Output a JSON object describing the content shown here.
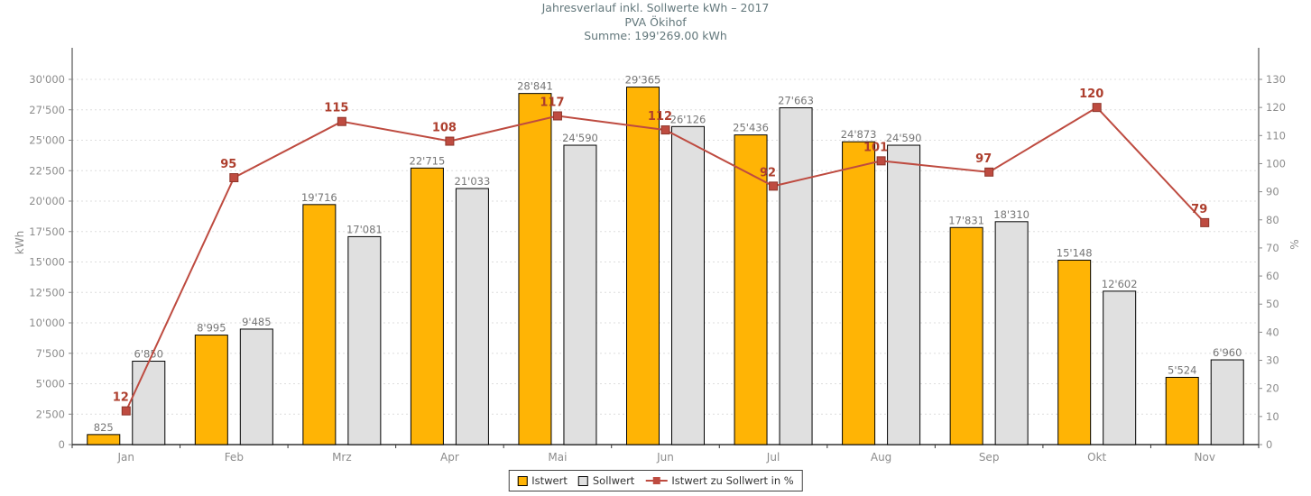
{
  "title": {
    "line1": "Jahresverlauf inkl. Sollwerte kWh – 2017",
    "line2": "PVA Ökihof",
    "line3": "Summe: 199'269.00 kWh"
  },
  "chart_data": {
    "type": "combo-bar-line",
    "title": "Jahresverlauf inkl. Sollwerte kWh – 2017",
    "subtitle": "PVA Ökihof",
    "sum_line": "Summe: 199'269.00 kWh",
    "categories": [
      "Jan",
      "Feb",
      "Mrz",
      "Apr",
      "Mai",
      "Jun",
      "Jul",
      "Aug",
      "Sep",
      "Okt",
      "Nov"
    ],
    "series": [
      {
        "key": "istwert",
        "name": "Istwert",
        "type": "bar",
        "axis": "left",
        "color": "#FFB405",
        "values": [
          825,
          8995,
          19716,
          22715,
          28841,
          29365,
          25436,
          24873,
          17831,
          15148,
          5524
        ]
      },
      {
        "key": "sollwert",
        "name": "Sollwert",
        "type": "bar",
        "axis": "left",
        "color": "#E0E0E0",
        "values": [
          6850,
          9485,
          17081,
          21033,
          24590,
          26126,
          27663,
          24590,
          18310,
          12602,
          6960
        ]
      },
      {
        "key": "percent",
        "name": "Istwert zu Sollwert in %",
        "type": "line",
        "axis": "right",
        "color": "#BE4B40",
        "marker": "square",
        "values": [
          12,
          95,
          115,
          108,
          117,
          112,
          92,
          101,
          97,
          120,
          79
        ]
      }
    ],
    "left_axis": {
      "label": "kWh",
      "min": 0,
      "max": 30000,
      "step": 2500,
      "thousands_separator": "'"
    },
    "right_axis": {
      "label": "%",
      "min": 0,
      "max": 130,
      "step": 10
    },
    "grid": "horizontal-dotted",
    "legend_position": "bottom-center",
    "style": {
      "background": "#ffffff",
      "bar_border": "#000000",
      "grid_color": "#dedede",
      "axis_line_color": "#333333",
      "tick_mark_color": "#888888",
      "tick_text_color": "#8c8c8c",
      "bar_label_color": "#767676",
      "line_color": "#BE4B40",
      "marker_border": "#8e352a",
      "percent_label_color": "#AD3E2D",
      "title_color": "#63787c",
      "legend_border_color": "#444444",
      "legend_text_color": "#333333"
    }
  }
}
